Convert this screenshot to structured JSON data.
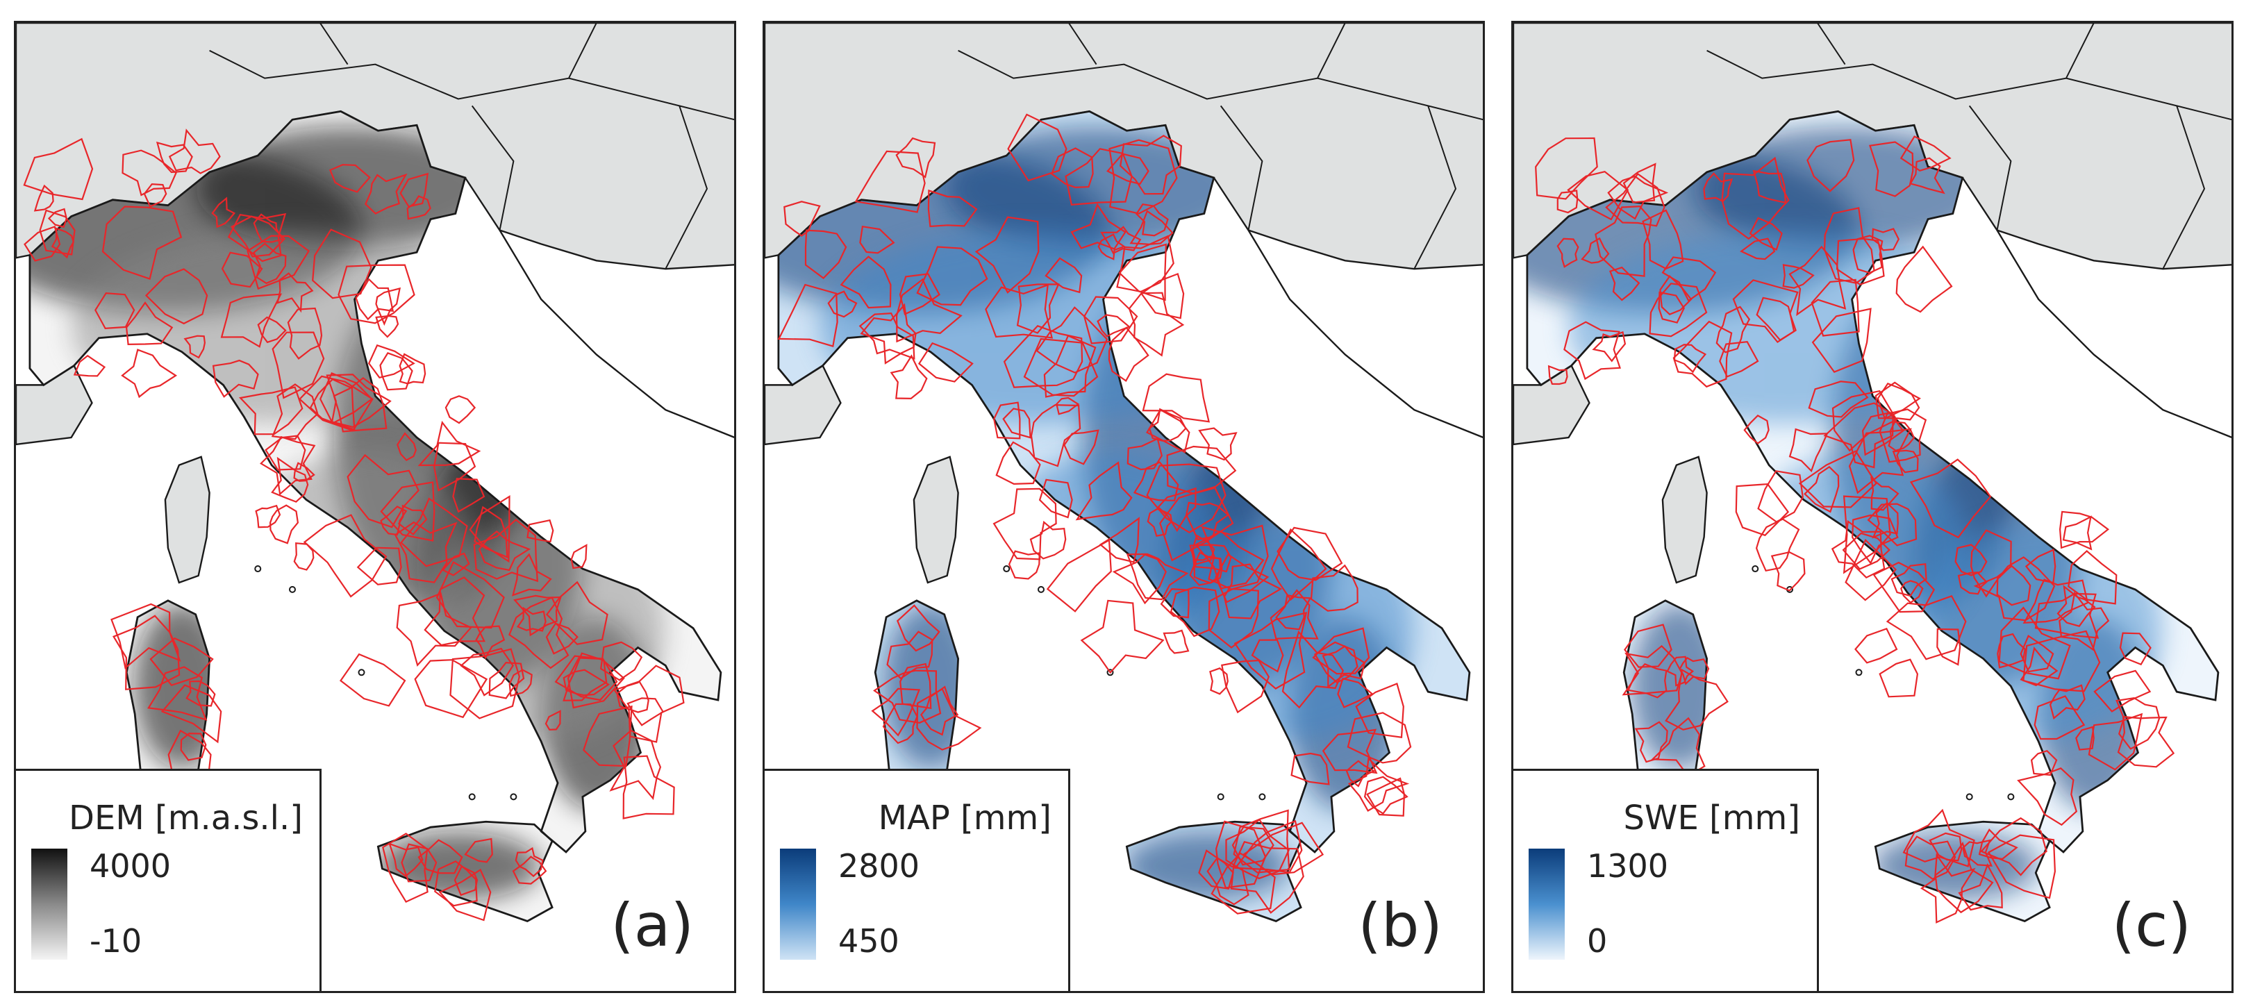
{
  "panels": [
    {
      "id": "a",
      "label": "(a)",
      "legend": {
        "title": "DEM [m.a.s.l.]",
        "max": "4000",
        "min": "-10"
      },
      "colors": {
        "high": "#111111",
        "mid": "#8a8a8a",
        "low": "#f4f4f4"
      }
    },
    {
      "id": "b",
      "label": "(b)",
      "legend": {
        "title": "MAP [mm]",
        "max": "2800",
        "min": "450"
      },
      "colors": {
        "high": "#0b3c7a",
        "mid": "#3f86c8",
        "low": "#cfe3f5"
      }
    },
    {
      "id": "c",
      "label": "(c)",
      "legend": {
        "title": "SWE [mm]",
        "max": "1300",
        "min": "0"
      },
      "colors": {
        "high": "#0b3c7a",
        "mid": "#4a90cf",
        "low": "#eef5fc"
      }
    }
  ],
  "map_colors": {
    "neighbour_land": "#dfe1e1",
    "sea": "#ffffff",
    "border": "#1a1a1a",
    "catchments": "#e8262a"
  }
}
